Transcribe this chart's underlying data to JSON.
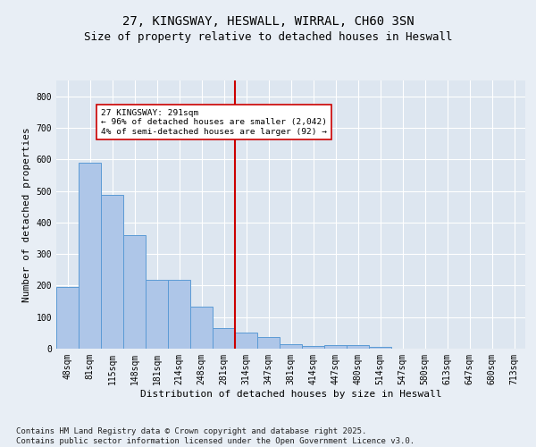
{
  "title1": "27, KINGSWAY, HESWALL, WIRRAL, CH60 3SN",
  "title2": "Size of property relative to detached houses in Heswall",
  "xlabel": "Distribution of detached houses by size in Heswall",
  "ylabel": "Number of detached properties",
  "bar_labels": [
    "48sqm",
    "81sqm",
    "115sqm",
    "148sqm",
    "181sqm",
    "214sqm",
    "248sqm",
    "281sqm",
    "314sqm",
    "347sqm",
    "381sqm",
    "414sqm",
    "447sqm",
    "480sqm",
    "514sqm",
    "547sqm",
    "580sqm",
    "613sqm",
    "647sqm",
    "680sqm",
    "713sqm"
  ],
  "bar_values": [
    196,
    590,
    487,
    360,
    218,
    218,
    133,
    65,
    50,
    36,
    15,
    8,
    11,
    11,
    7,
    0,
    0,
    0,
    0,
    0,
    0
  ],
  "bar_color": "#aec6e8",
  "bar_edge_color": "#5b9bd5",
  "background_color": "#dde6f0",
  "fig_background_color": "#e8eef5",
  "grid_color": "#ffffff",
  "vline_x": 7.5,
  "vline_color": "#cc0000",
  "annotation_text": "27 KINGSWAY: 291sqm\n← 96% of detached houses are smaller (2,042)\n4% of semi-detached houses are larger (92) →",
  "annotation_box_color": "#ffffff",
  "annotation_box_edge": "#cc0000",
  "ylim": [
    0,
    850
  ],
  "yticks": [
    0,
    100,
    200,
    300,
    400,
    500,
    600,
    700,
    800
  ],
  "footer": "Contains HM Land Registry data © Crown copyright and database right 2025.\nContains public sector information licensed under the Open Government Licence v3.0.",
  "title_fontsize": 10,
  "subtitle_fontsize": 9,
  "axis_fontsize": 8,
  "tick_fontsize": 7,
  "footer_fontsize": 6.5
}
